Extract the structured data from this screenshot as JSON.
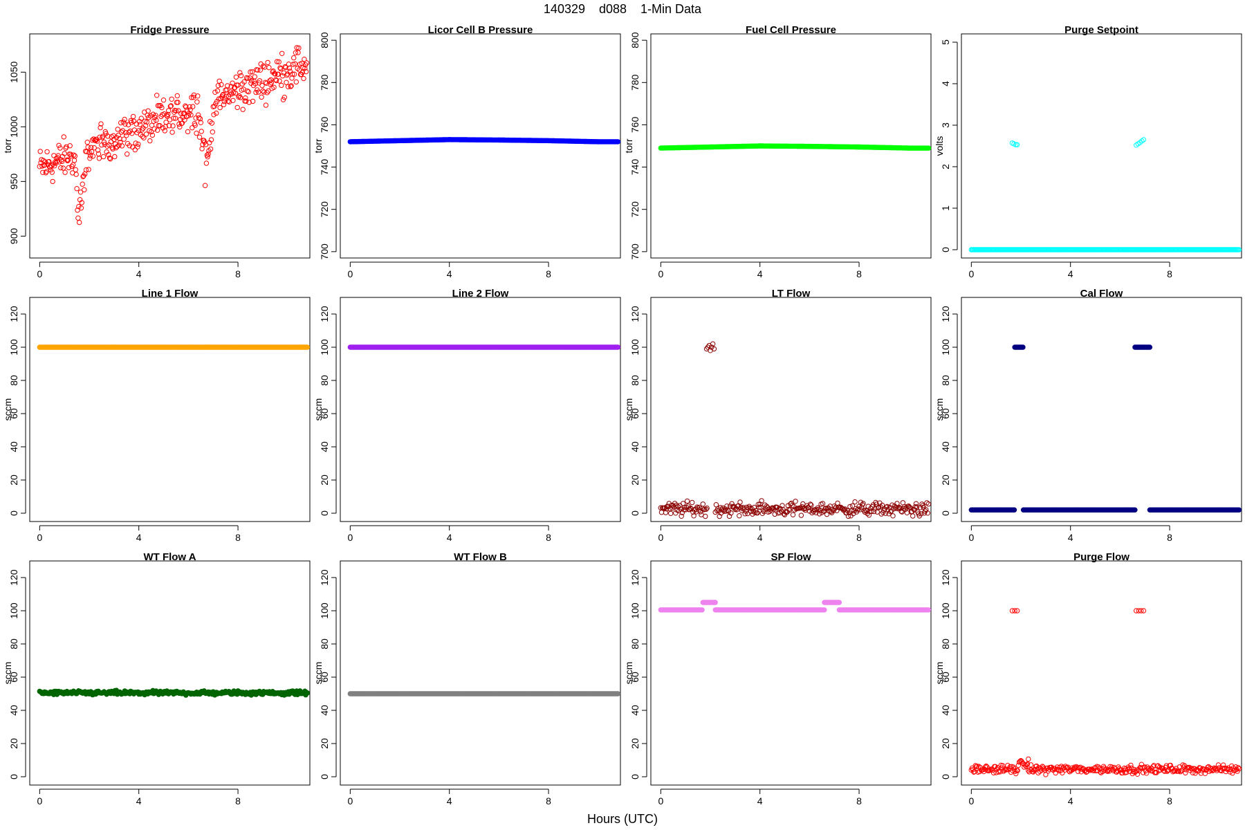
{
  "figure": {
    "title": "140329    d088    1-Min Data",
    "xlabel": "Hours (UTC)"
  },
  "chart_data": [
    {
      "type": "scatter",
      "title": "Fridge Pressure",
      "ylabel": "torr",
      "xlim": [
        -0.4,
        10.9
      ],
      "ylim": [
        880,
        1085
      ],
      "xticks": [
        0,
        4,
        8
      ],
      "yticks": [
        900,
        950,
        1000,
        1050
      ],
      "color": "#ff0000",
      "marker": "open",
      "series": [
        {
          "kind": "trend",
          "x_start": 0,
          "x_end": 10.8,
          "y_start": 962,
          "y_end": 1058,
          "noise": 9,
          "dips": [
            {
              "x": 1.6,
              "w": 0.25,
              "depth": 70
            },
            {
              "x": 6.7,
              "w": 0.3,
              "depth": 70
            }
          ]
        }
      ]
    },
    {
      "type": "scatter",
      "title": "Licor Cell B Pressure",
      "ylabel": "torr",
      "xlim": [
        -0.4,
        10.9
      ],
      "ylim": [
        697,
        803
      ],
      "xticks": [
        0,
        4,
        8
      ],
      "yticks": [
        700,
        720,
        740,
        760,
        780,
        800
      ],
      "color": "#0000ff",
      "marker": "filled",
      "series": [
        {
          "kind": "points",
          "x": [
            0,
            2,
            4,
            6,
            8,
            10,
            10.8
          ],
          "y": [
            752,
            752.5,
            753,
            752.8,
            752.5,
            752,
            752
          ]
        }
      ]
    },
    {
      "type": "scatter",
      "title": "Fuel Cell Pressure",
      "ylabel": "torr",
      "xlim": [
        -0.4,
        10.9
      ],
      "ylim": [
        697,
        803
      ],
      "xticks": [
        0,
        4,
        8
      ],
      "yticks": [
        700,
        720,
        740,
        760,
        780,
        800
      ],
      "color": "#00ff00",
      "marker": "filled",
      "series": [
        {
          "kind": "points",
          "x": [
            0,
            2,
            4,
            6,
            8,
            10,
            10.8
          ],
          "y": [
            749,
            749.5,
            750,
            749.8,
            749.5,
            749,
            749
          ]
        }
      ]
    },
    {
      "type": "scatter",
      "title": "Purge Setpoint",
      "ylabel": "volts",
      "xlim": [
        -0.4,
        10.9
      ],
      "ylim": [
        -0.2,
        5.2
      ],
      "xticks": [
        0,
        4,
        8
      ],
      "yticks": [
        0,
        1,
        2,
        3,
        4,
        5
      ],
      "color": "#00ffff",
      "marker": "open",
      "series": [
        {
          "kind": "segments",
          "segments": [
            [
              0,
              10.8,
              0
            ]
          ]
        },
        {
          "kind": "points",
          "x": [
            1.65,
            1.72,
            1.8,
            1.85,
            6.65,
            6.72,
            6.8,
            6.88,
            6.95
          ],
          "y": [
            2.57,
            2.55,
            2.53,
            2.53,
            2.52,
            2.55,
            2.58,
            2.62,
            2.65
          ]
        }
      ]
    },
    {
      "type": "scatter",
      "title": "Line 1 Flow",
      "ylabel": "sccm",
      "xlim": [
        -0.4,
        10.9
      ],
      "ylim": [
        -5,
        130
      ],
      "xticks": [
        0,
        4,
        8
      ],
      "yticks": [
        0,
        20,
        40,
        60,
        80,
        100,
        120
      ],
      "color": "#ffa500",
      "marker": "filled",
      "series": [
        {
          "kind": "segments",
          "segments": [
            [
              0,
              10.8,
              100
            ]
          ]
        }
      ]
    },
    {
      "type": "scatter",
      "title": "Line 2 Flow",
      "ylabel": "sccm",
      "xlim": [
        -0.4,
        10.9
      ],
      "ylim": [
        -5,
        130
      ],
      "xticks": [
        0,
        4,
        8
      ],
      "yticks": [
        0,
        20,
        40,
        60,
        80,
        100,
        120
      ],
      "color": "#a020f0",
      "marker": "filled",
      "series": [
        {
          "kind": "segments",
          "segments": [
            [
              0,
              10.8,
              100
            ]
          ]
        }
      ]
    },
    {
      "type": "scatter",
      "title": "LT Flow",
      "ylabel": "sccm",
      "xlim": [
        -0.4,
        10.9
      ],
      "ylim": [
        -5,
        130
      ],
      "xticks": [
        0,
        4,
        8
      ],
      "yticks": [
        0,
        20,
        40,
        60,
        80,
        100,
        120
      ],
      "color": "#8b0000",
      "marker": "open",
      "series": [
        {
          "kind": "noisy",
          "segments": [
            [
              0,
              1.9,
              2.5
            ],
            [
              2.2,
              10.8,
              2.5
            ]
          ],
          "noise": 2
        },
        {
          "kind": "points",
          "x": [
            1.85,
            1.9,
            1.95,
            2.0,
            2.05,
            2.1,
            2.15
          ],
          "y": [
            99,
            100,
            101,
            98,
            100,
            102,
            99
          ]
        }
      ]
    },
    {
      "type": "scatter",
      "title": "Cal Flow",
      "ylabel": "sccm",
      "xlim": [
        -0.4,
        10.9
      ],
      "ylim": [
        -5,
        130
      ],
      "xticks": [
        0,
        4,
        8
      ],
      "yticks": [
        0,
        20,
        40,
        60,
        80,
        100,
        120
      ],
      "color": "#000080",
      "marker": "filled",
      "series": [
        {
          "kind": "segments",
          "segments": [
            [
              0,
              1.75,
              2
            ],
            [
              1.75,
              2.1,
              100
            ],
            [
              2.1,
              6.6,
              2
            ],
            [
              6.6,
              7.2,
              100
            ],
            [
              7.2,
              10.8,
              2
            ]
          ]
        }
      ]
    },
    {
      "type": "scatter",
      "title": "WT Flow A",
      "ylabel": "sccm",
      "xlim": [
        -0.4,
        10.9
      ],
      "ylim": [
        -5,
        130
      ],
      "xticks": [
        0,
        4,
        8
      ],
      "yticks": [
        0,
        20,
        40,
        60,
        80,
        100,
        120
      ],
      "color": "#006400",
      "marker": "filled",
      "series": [
        {
          "kind": "noisy",
          "segments": [
            [
              0,
              10.8,
              50.5
            ]
          ],
          "noise": 0.6
        }
      ]
    },
    {
      "type": "scatter",
      "title": "WT Flow B",
      "ylabel": "sccm",
      "xlim": [
        -0.4,
        10.9
      ],
      "ylim": [
        -5,
        130
      ],
      "xticks": [
        0,
        4,
        8
      ],
      "yticks": [
        0,
        20,
        40,
        60,
        80,
        100,
        120
      ],
      "color": "#808080",
      "marker": "filled",
      "series": [
        {
          "kind": "segments",
          "segments": [
            [
              0,
              10.8,
              50
            ]
          ]
        }
      ]
    },
    {
      "type": "scatter",
      "title": "SP Flow",
      "ylabel": "sccm",
      "xlim": [
        -0.4,
        10.9
      ],
      "ylim": [
        -5,
        130
      ],
      "xticks": [
        0,
        4,
        8
      ],
      "yticks": [
        0,
        20,
        40,
        60,
        80,
        100,
        120
      ],
      "color": "#ee82ee",
      "marker": "filled",
      "series": [
        {
          "kind": "segments",
          "segments": [
            [
              0,
              1.7,
              100.5
            ],
            [
              1.7,
              2.2,
              105
            ],
            [
              2.2,
              6.6,
              100.5
            ],
            [
              6.6,
              7.2,
              105
            ],
            [
              7.2,
              10.8,
              100.5
            ]
          ]
        }
      ]
    },
    {
      "type": "scatter",
      "title": "Purge Flow",
      "ylabel": "sccm",
      "xlim": [
        -0.4,
        10.9
      ],
      "ylim": [
        -5,
        130
      ],
      "xticks": [
        0,
        4,
        8
      ],
      "yticks": [
        0,
        20,
        40,
        60,
        80,
        100,
        120
      ],
      "color": "#ff0000",
      "marker": "open",
      "series": [
        {
          "kind": "noisy",
          "segments": [
            [
              0,
              1.9,
              4.5
            ],
            [
              1.9,
              2.3,
              7.5
            ],
            [
              2.3,
              10.8,
              4.5
            ]
          ],
          "noise": 1.2
        },
        {
          "kind": "points",
          "x": [
            1.65,
            1.75,
            1.85,
            6.65,
            6.75,
            6.85,
            6.95
          ],
          "y": [
            100,
            100,
            100,
            100,
            100,
            100,
            100
          ]
        }
      ]
    }
  ]
}
